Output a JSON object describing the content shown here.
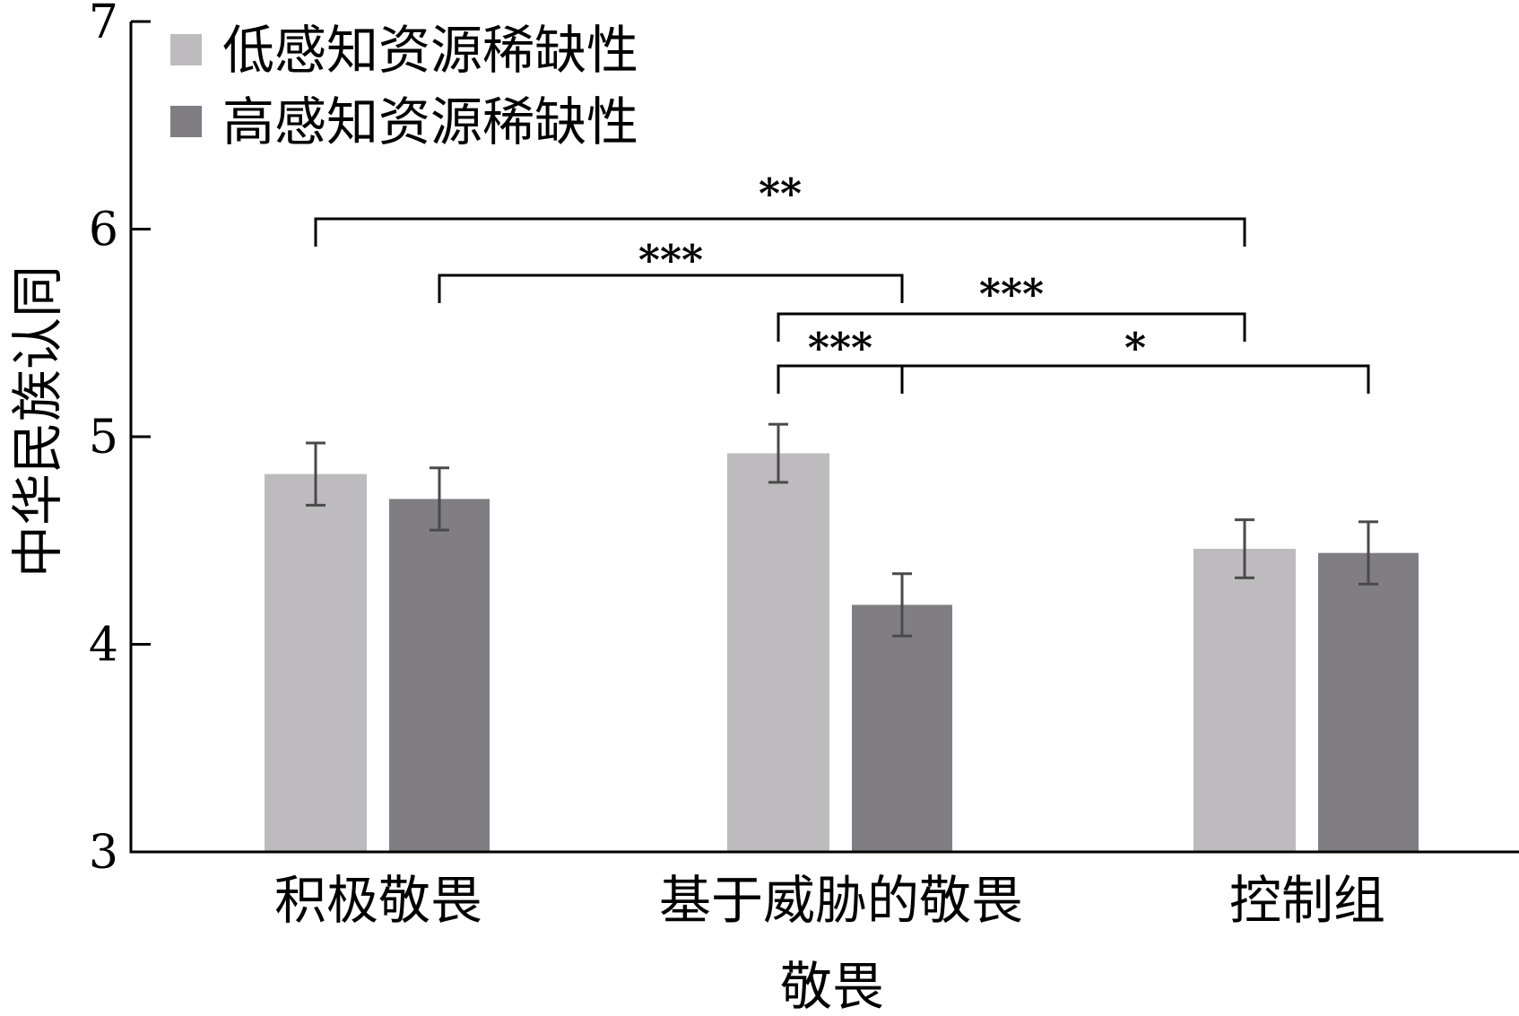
{
  "chart_data": {
    "type": "bar",
    "title": "",
    "xlabel": "敬畏",
    "ylabel": "中华民族认同",
    "categories": [
      "积极敬畏",
      "基于威胁的敬畏",
      "控制组"
    ],
    "ylim": [
      3,
      7
    ],
    "yticks": [
      3,
      4,
      5,
      6,
      7
    ],
    "grid": false,
    "legend_position": "top-left",
    "series": [
      {
        "name": "低感知资源稀缺性",
        "color": "#bdbbbe",
        "values": [
          4.82,
          4.92,
          4.46
        ],
        "error": [
          0.15,
          0.14,
          0.14
        ]
      },
      {
        "name": "高感知资源稀缺性",
        "color": "#807e83",
        "values": [
          4.7,
          4.19,
          4.44
        ],
        "error": [
          0.15,
          0.15,
          0.15
        ]
      }
    ],
    "significance": [
      {
        "from": "积极敬畏 / 低感知资源稀缺性",
        "to": "控制组 / 低感知资源稀缺性",
        "label": "**"
      },
      {
        "from": "积极敬畏 / 高感知资源稀缺性",
        "to": "基于威胁的敬畏 / 高感知资源稀缺性",
        "label": "***"
      },
      {
        "from": "基于威胁的敬畏 / 低感知资源稀缺性",
        "to": "控制组 / 低感知资源稀缺性",
        "label": "***"
      },
      {
        "from": "基于威胁的敬畏 / 低感知资源稀缺性",
        "to": "基于威胁的敬畏 / 高感知资源稀缺性",
        "label": "***"
      },
      {
        "from": "基于威胁的敬畏 / 高感知资源稀缺性",
        "to": "控制组 / 高感知资源稀缺性",
        "label": "*"
      }
    ]
  }
}
